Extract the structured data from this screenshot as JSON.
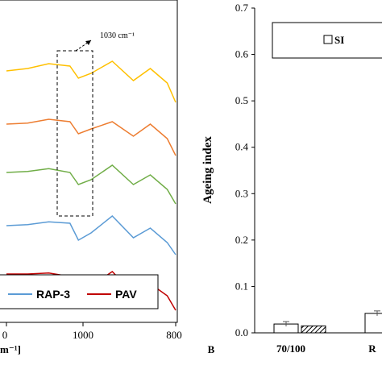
{
  "chart_data": [
    {
      "type": "line",
      "panel": "left",
      "annotation": "1030 cm⁻¹",
      "xlabel_fragment": "m⁻¹]",
      "x_ticks": [
        "0",
        "1000",
        "800"
      ],
      "legend": [
        {
          "name": "RAP-3",
          "color": "#5b9bd5"
        },
        {
          "name": "PAV",
          "color": "#c00000"
        }
      ],
      "series": [
        {
          "color": "#ffc000",
          "x": [
            1200,
            1150,
            1100,
            1050,
            1030,
            1000,
            950,
            900,
            860,
            820,
            800
          ],
          "y": [
            5.2,
            5.25,
            5.35,
            5.3,
            5.05,
            5.15,
            5.4,
            5.0,
            5.25,
            4.95,
            4.55
          ]
        },
        {
          "color": "#ed7d31",
          "x": [
            1200,
            1150,
            1100,
            1050,
            1030,
            1000,
            950,
            900,
            860,
            820,
            800
          ],
          "y": [
            4.1,
            4.12,
            4.2,
            4.15,
            3.9,
            4.0,
            4.15,
            3.85,
            4.1,
            3.8,
            3.45
          ]
        },
        {
          "color": "#70ad47",
          "x": [
            1200,
            1150,
            1100,
            1050,
            1030,
            1000,
            950,
            900,
            860,
            820,
            800
          ],
          "y": [
            3.1,
            3.12,
            3.18,
            3.1,
            2.85,
            2.95,
            3.25,
            2.85,
            3.05,
            2.75,
            2.45
          ]
        },
        {
          "color": "#5b9bd5",
          "x": [
            1200,
            1150,
            1100,
            1050,
            1030,
            1000,
            950,
            900,
            860,
            820,
            800
          ],
          "y": [
            2.0,
            2.02,
            2.08,
            2.05,
            1.7,
            1.85,
            2.2,
            1.75,
            1.95,
            1.65,
            1.4
          ]
        },
        {
          "color": "#c00000",
          "x": [
            1200,
            1150,
            1100,
            1050,
            1030,
            1000,
            950,
            900,
            860,
            820,
            800
          ],
          "y": [
            1.0,
            1.0,
            1.02,
            0.95,
            0.55,
            0.75,
            1.05,
            0.6,
            0.8,
            0.55,
            0.25
          ]
        }
      ]
    },
    {
      "type": "bar",
      "panel": "right",
      "panel_label": "B",
      "ylabel": "Ageing index",
      "ylim": [
        0,
        0.7
      ],
      "y_ticks": [
        "0.0",
        "0.1",
        "0.2",
        "0.3",
        "0.4",
        "0.5",
        "0.6",
        "0.7"
      ],
      "categories": [
        "70/100",
        "R"
      ],
      "legend": [
        "SI"
      ],
      "bars": [
        {
          "category": "70/100",
          "style": "open",
          "value": 0.019
        },
        {
          "category": "70/100",
          "style": "hatched",
          "value": 0.015
        },
        {
          "category": "R",
          "style": "open",
          "value": 0.042
        }
      ]
    }
  ]
}
